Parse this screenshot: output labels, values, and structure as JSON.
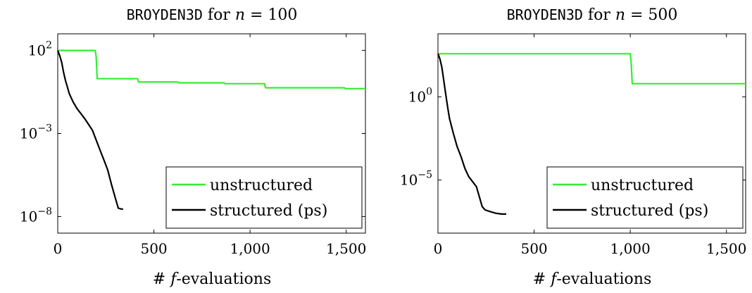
{
  "chart_data": [
    {
      "type": "line",
      "title": {
        "prefix": "BROYDEN3D",
        "middle": " for ",
        "var": "n",
        "suffix": " = 100"
      },
      "xlabel": {
        "prefix": "# ",
        "var": "f",
        "suffix": "-evaluations"
      },
      "ylabel": "",
      "xlim": [
        0,
        1600
      ],
      "ylim_log10": [
        -9,
        3
      ],
      "yscale": "log",
      "grid": false,
      "legend_position": "bottom-right",
      "x_ticks": [
        {
          "value": 0,
          "label": "0"
        },
        {
          "value": 500,
          "label": "500"
        },
        {
          "value": 1000,
          "label": "1,000"
        },
        {
          "value": 1500,
          "label": "1,500"
        }
      ],
      "y_ticks": [
        {
          "exp": 2,
          "base": "10",
          "sup": "2"
        },
        {
          "exp": -3,
          "base": "10",
          "sup": "−3"
        },
        {
          "exp": -8,
          "base": "10",
          "sup": "−8"
        }
      ],
      "series": [
        {
          "name": "unstructured",
          "color": "#33ee33",
          "x": [
            0,
            195,
            200,
            205,
            415,
            420,
            625,
            630,
            865,
            870,
            1075,
            1080,
            1490,
            1495,
            1600
          ],
          "log10_y": [
            2,
            2,
            1.6,
            0.3,
            0.3,
            0.1,
            0.1,
            0.05,
            0.05,
            0.0,
            0.0,
            -0.25,
            -0.25,
            -0.3,
            -0.3
          ]
        },
        {
          "name": "structured (ps)",
          "color": "#000000",
          "x": [
            0,
            10,
            20,
            30,
            40,
            50,
            60,
            80,
            100,
            120,
            140,
            160,
            180,
            200,
            220,
            240,
            260,
            280,
            300,
            315,
            330,
            340
          ],
          "log10_y": [
            2,
            1.7,
            1.3,
            0.7,
            0.2,
            -0.2,
            -0.6,
            -1.1,
            -1.5,
            -1.8,
            -2.1,
            -2.45,
            -2.8,
            -3.4,
            -4.0,
            -4.6,
            -5.2,
            -6.1,
            -6.9,
            -7.5,
            -7.55,
            -7.55
          ]
        }
      ]
    },
    {
      "type": "line",
      "title": {
        "prefix": "BROYDEN3D",
        "middle": " for ",
        "var": "n",
        "suffix": " = 500"
      },
      "xlabel": {
        "prefix": "# ",
        "var": "f",
        "suffix": "-evaluations"
      },
      "ylabel": "",
      "xlim": [
        0,
        1600
      ],
      "ylim_log10": [
        -8.2,
        3.8
      ],
      "yscale": "log",
      "grid": false,
      "legend_position": "bottom-right",
      "x_ticks": [
        {
          "value": 0,
          "label": "0"
        },
        {
          "value": 500,
          "label": "500"
        },
        {
          "value": 1000,
          "label": "1,000"
        },
        {
          "value": 1500,
          "label": "1,500"
        }
      ],
      "y_ticks": [
        {
          "exp": 0,
          "base": "10",
          "sup": "0"
        },
        {
          "exp": -5,
          "base": "10",
          "sup": "−5"
        }
      ],
      "series": [
        {
          "name": "unstructured",
          "color": "#33ee33",
          "x": [
            0,
            1000,
            1005,
            1010,
            1600
          ],
          "log10_y": [
            2.6,
            2.6,
            2.0,
            0.8,
            0.8
          ]
        },
        {
          "name": "structured (ps)",
          "color": "#000000",
          "x": [
            0,
            10,
            20,
            30,
            40,
            50,
            60,
            80,
            100,
            120,
            140,
            160,
            180,
            200,
            215,
            230,
            245,
            270,
            300,
            330,
            355
          ],
          "log10_y": [
            2.6,
            2.3,
            1.8,
            1.0,
            0.2,
            -0.6,
            -1.3,
            -2.2,
            -3.0,
            -3.6,
            -4.3,
            -4.8,
            -5.1,
            -5.4,
            -6.0,
            -6.6,
            -6.8,
            -6.9,
            -7.0,
            -7.05,
            -7.05
          ]
        }
      ]
    }
  ]
}
